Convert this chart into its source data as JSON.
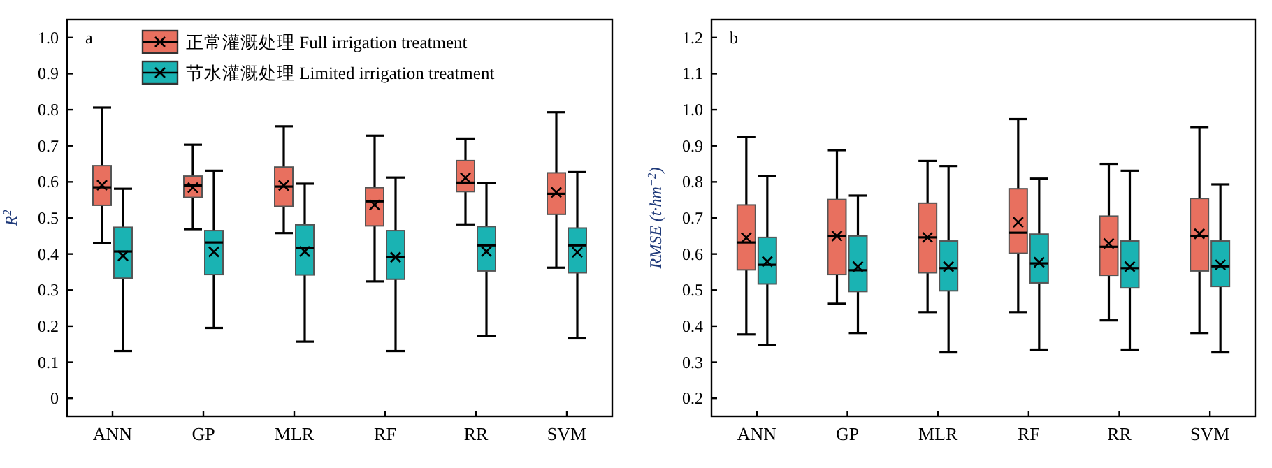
{
  "chart_data": [
    {
      "type": "box",
      "ylabel": "R$^{2}$",
      "annotations": [
        "a"
      ],
      "categories": [
        "ANN",
        "GP",
        "MLR",
        "RF",
        "RR",
        "SVM"
      ],
      "ylim": [
        -0.05,
        1.05
      ],
      "yticks": [
        0,
        0.1,
        0.2,
        0.3,
        0.4,
        0.5,
        0.6,
        0.7,
        0.8,
        0.9,
        {
          "value": 1,
          "label": "1.0"
        }
      ],
      "grid": false,
      "legend": "top",
      "marker": "cross",
      "series": [
        {
          "name": "正常灌溉处理  Full irrigation treatment",
          "color": "#e8705f",
          "boxes": [
            {
              "low": 0.43,
              "q1": 0.535,
              "median": 0.585,
              "q3": 0.645,
              "high": 0.806,
              "mean": 0.591
            },
            {
              "low": 0.469,
              "q1": 0.557,
              "median": 0.59,
              "q3": 0.616,
              "high": 0.703,
              "mean": 0.584
            },
            {
              "low": 0.458,
              "q1": 0.532,
              "median": 0.587,
              "q3": 0.641,
              "high": 0.754,
              "mean": 0.59
            },
            {
              "low": 0.324,
              "q1": 0.478,
              "median": 0.546,
              "q3": 0.584,
              "high": 0.728,
              "mean": 0.536
            },
            {
              "low": 0.482,
              "q1": 0.573,
              "median": 0.598,
              "q3": 0.659,
              "high": 0.72,
              "mean": 0.611
            },
            {
              "low": 0.362,
              "q1": 0.51,
              "median": 0.567,
              "q3": 0.625,
              "high": 0.793,
              "mean": 0.571
            }
          ]
        },
        {
          "name": "节水灌溉处理  Limited irrigation treatment",
          "color": "#1ab3b3",
          "boxes": [
            {
              "low": 0.131,
              "q1": 0.333,
              "median": 0.407,
              "q3": 0.474,
              "high": 0.581,
              "mean": 0.395
            },
            {
              "low": 0.195,
              "q1": 0.343,
              "median": 0.432,
              "q3": 0.465,
              "high": 0.631,
              "mean": 0.406
            },
            {
              "low": 0.157,
              "q1": 0.342,
              "median": 0.416,
              "q3": 0.481,
              "high": 0.595,
              "mean": 0.407
            },
            {
              "low": 0.131,
              "q1": 0.33,
              "median": 0.391,
              "q3": 0.465,
              "high": 0.612,
              "mean": 0.391
            },
            {
              "low": 0.172,
              "q1": 0.353,
              "median": 0.424,
              "q3": 0.476,
              "high": 0.596,
              "mean": 0.407
            },
            {
              "low": 0.166,
              "q1": 0.348,
              "median": 0.424,
              "q3": 0.472,
              "high": 0.627,
              "mean": 0.405
            }
          ]
        }
      ]
    },
    {
      "type": "box",
      "ylabel": "RMSE (t·hm$^{−2}$)",
      "annotations": [
        "b"
      ],
      "categories": [
        "ANN",
        "GP",
        "MLR",
        "RF",
        "RR",
        "SVM"
      ],
      "ylim": [
        0.15,
        1.25
      ],
      "yticks": [
        0.2,
        0.3,
        0.4,
        0.5,
        0.6,
        0.7,
        0.8,
        0.9,
        {
          "value": 1,
          "label": "1.0"
        },
        1.1,
        1.2
      ],
      "grid": false,
      "marker": "cross",
      "series": [
        {
          "color": "#e8705f",
          "boxes": [
            {
              "low": 0.377,
              "q1": 0.556,
              "median": 0.632,
              "q3": 0.736,
              "high": 0.924,
              "mean": 0.645
            },
            {
              "low": 0.462,
              "q1": 0.543,
              "median": 0.65,
              "q3": 0.751,
              "high": 0.888,
              "mean": 0.65
            },
            {
              "low": 0.439,
              "q1": 0.548,
              "median": 0.646,
              "q3": 0.741,
              "high": 0.858,
              "mean": 0.646
            },
            {
              "low": 0.439,
              "q1": 0.602,
              "median": 0.659,
              "q3": 0.781,
              "high": 0.974,
              "mean": 0.688
            },
            {
              "low": 0.416,
              "q1": 0.541,
              "median": 0.62,
              "q3": 0.705,
              "high": 0.85,
              "mean": 0.629
            },
            {
              "low": 0.381,
              "q1": 0.553,
              "median": 0.65,
              "q3": 0.754,
              "high": 0.952,
              "mean": 0.656
            }
          ]
        },
        {
          "color": "#1ab3b3",
          "boxes": [
            {
              "low": 0.347,
              "q1": 0.517,
              "median": 0.57,
              "q3": 0.646,
              "high": 0.816,
              "mean": 0.579
            },
            {
              "low": 0.381,
              "q1": 0.496,
              "median": 0.555,
              "q3": 0.65,
              "high": 0.762,
              "mean": 0.565
            },
            {
              "low": 0.327,
              "q1": 0.498,
              "median": 0.561,
              "q3": 0.636,
              "high": 0.844,
              "mean": 0.565
            },
            {
              "low": 0.335,
              "q1": 0.52,
              "median": 0.574,
              "q3": 0.655,
              "high": 0.809,
              "mean": 0.577
            },
            {
              "low": 0.335,
              "q1": 0.506,
              "median": 0.561,
              "q3": 0.636,
              "high": 0.831,
              "mean": 0.565
            },
            {
              "low": 0.327,
              "q1": 0.51,
              "median": 0.566,
              "q3": 0.636,
              "high": 0.793,
              "mean": 0.57
            }
          ]
        }
      ]
    }
  ]
}
